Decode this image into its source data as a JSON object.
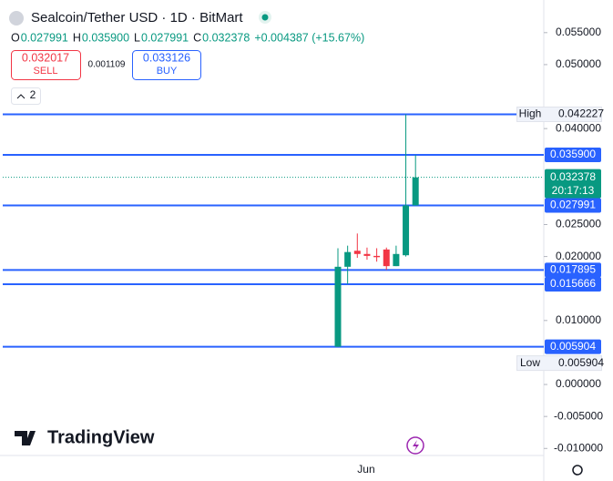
{
  "header": {
    "title": "Sealcoin/Tether USD · 1D · BitMart",
    "ohlc": [
      {
        "label": "O",
        "value": "0.027991"
      },
      {
        "label": "H",
        "value": "0.035900"
      },
      {
        "label": "L",
        "value": "0.027991"
      },
      {
        "label": "C",
        "value": "0.032378"
      }
    ],
    "change": "+0.004387 (+15.67%)"
  },
  "trade": {
    "sell_price": "0.032017",
    "sell_label": "SELL",
    "spread": "0.001109",
    "buy_price": "0.033126",
    "buy_label": "BUY"
  },
  "indicators_count": "2",
  "brand": "TradingView",
  "chart_data": {
    "type": "candlestick",
    "categories": [
      null,
      null,
      null,
      "Jun",
      null,
      null,
      null,
      null,
      null
    ],
    "open": [
      0.0059,
      0.0184,
      0.0209,
      0.0204,
      0.0201,
      0.0211,
      0.0185,
      0.0202,
      0.027991
    ],
    "high": [
      0.0213,
      0.0217,
      0.0236,
      0.0214,
      0.0213,
      0.0214,
      0.0217,
      0.042227,
      0.0359
    ],
    "low": [
      0.005904,
      0.0157,
      0.0198,
      0.0195,
      0.0192,
      0.0179,
      0.0185,
      0.02,
      0.027991
    ],
    "close": [
      0.0184,
      0.0207,
      0.0204,
      0.0201,
      0.0199,
      0.0185,
      0.0204,
      0.027991,
      0.032378
    ],
    "up_color": "#089981",
    "down_color": "#f23645",
    "level_color": "#2962ff",
    "ylim": [
      -0.0111,
      0.0601
    ],
    "yticks": [
      {
        "value": 0.055,
        "label": "0.055000"
      },
      {
        "value": 0.05,
        "label": "0.050000"
      },
      {
        "value": 0.04,
        "label": "0.040000"
      },
      {
        "value": 0.025,
        "label": "0.025000"
      },
      {
        "value": 0.02,
        "label": "0.020000"
      },
      {
        "value": 0.01,
        "label": "0.010000"
      },
      {
        "value": 0,
        "label": "0.000000"
      },
      {
        "value": -0.005,
        "label": "-0.005000"
      },
      {
        "value": -0.01,
        "label": "-0.010000"
      }
    ],
    "levels": [
      {
        "value": 0.042227,
        "label": "0.042227"
      },
      {
        "value": 0.0359,
        "label": "0.035900"
      },
      {
        "value": 0.027991,
        "label": "0.027991"
      },
      {
        "value": 0.017895,
        "label": "0.017895"
      },
      {
        "value": 0.015666,
        "label": "0.015666"
      },
      {
        "value": 0.005904,
        "label": "0.005904"
      }
    ],
    "high_label": "High",
    "low_label": "Low",
    "current": {
      "value": 0.032378,
      "label": "0.032378",
      "countdown": "20:17:13"
    }
  }
}
